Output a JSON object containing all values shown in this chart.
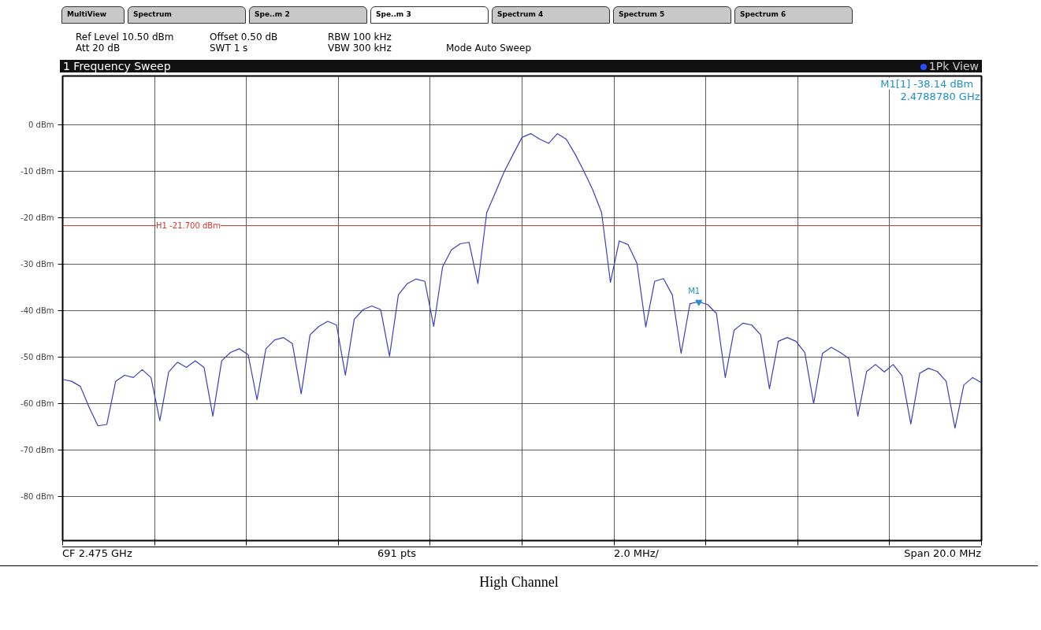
{
  "chart_data": {
    "type": "line",
    "title": "1 Frequency Sweep",
    "categories": [
      null,
      null,
      null,
      null,
      null,
      null,
      null,
      null,
      null,
      null,
      null,
      null,
      null,
      null,
      null,
      null,
      null,
      null,
      null,
      null,
      null,
      null,
      null,
      null,
      null,
      null,
      null,
      null,
      null,
      null,
      null,
      null,
      null,
      null,
      null,
      null,
      null,
      null,
      null,
      null,
      null,
      null,
      null,
      null,
      null,
      null,
      null,
      null,
      null,
      null,
      null,
      null,
      null,
      null,
      null,
      null,
      null,
      null,
      null,
      null,
      null,
      null,
      null,
      null,
      null,
      null,
      null,
      null,
      null,
      null,
      null,
      null,
      null,
      null,
      null,
      null,
      null,
      null,
      null,
      null,
      null,
      null,
      null,
      null,
      null,
      null,
      null,
      null,
      null,
      null,
      null,
      null,
      null,
      null,
      null,
      null,
      null,
      null,
      null,
      null,
      null,
      null,
      null,
      null,
      null
    ],
    "series": [
      {
        "color": "#3b3fc0",
        "values": [
          -54.8,
          -55.2,
          -56.3,
          -60.8,
          -64.8,
          -64.5,
          -55.2,
          -53.9,
          -54.4,
          -52.7,
          -54.4,
          -63.7,
          -53.2,
          -51.1,
          -52.2,
          -50.8,
          -52.2,
          -62.7,
          -50.8,
          -49.0,
          -48.2,
          -49.5,
          -59.2,
          -48.2,
          -46.3,
          -45.8,
          -47.1,
          -57.9,
          -45.2,
          -43.4,
          -42.3,
          -43.1,
          -53.9,
          -41.9,
          -39.8,
          -39.0,
          -39.8,
          -49.8,
          -36.6,
          -34.2,
          -33.2,
          -33.7,
          -43.4,
          -30.6,
          -26.9,
          -25.6,
          -25.3,
          -34.2,
          -18.9,
          -14.5,
          -10.0,
          -6.3,
          -2.7,
          -1.9,
          -3.1,
          -4.0,
          -1.9,
          -3.1,
          -6.3,
          -10.0,
          -14.0,
          -18.9,
          -33.9,
          -25.0,
          -25.8,
          -29.8,
          -43.5,
          -33.7,
          -33.1,
          -36.6,
          -49.2,
          -38.5,
          -38.1,
          -38.7,
          -40.6,
          -54.4,
          -44.2,
          -42.7,
          -43.1,
          -45.2,
          -56.8,
          -46.6,
          -45.8,
          -46.6,
          -49.0,
          -60.0,
          -49.2,
          -47.9,
          -49.0,
          -50.3,
          -62.7,
          -53.1,
          -51.6,
          -53.2,
          -51.6,
          -54.0,
          -64.4,
          -53.5,
          -52.4,
          -53.1,
          -55.2,
          -65.3,
          -56.0,
          -54.4,
          -55.5
        ]
      }
    ],
    "ylim": [
      -89.5,
      10.5
    ],
    "yticks": [
      {
        "value": 0,
        "label": "0 dBm"
      },
      {
        "value": -10,
        "label": "-10 dBm"
      },
      {
        "value": -20,
        "label": "-20 dBm"
      },
      {
        "value": -30,
        "label": "-30 dBm"
      },
      {
        "value": -40,
        "label": "-40 dBm"
      },
      {
        "value": -50,
        "label": "-50 dBm"
      },
      {
        "value": -60,
        "label": "-60 dBm"
      },
      {
        "value": -70,
        "label": "-70 dBm"
      },
      {
        "value": -80,
        "label": "-80 dBm"
      }
    ],
    "tick_labels": "y",
    "grid": true,
    "marker": "none",
    "line_style": "solid",
    "ref_lines": [
      {
        "axis": "y",
        "value": -21.7,
        "label": "H1 -21.700 dBm",
        "color": "#d9362b"
      }
    ],
    "annotations": [
      "MultiView",
      "Spectrum",
      "Spe..m 2",
      "Spe..m 3",
      "Spectrum 4",
      "Spectrum 5",
      "Spectrum 6",
      "Ref Level 10.50 dBm",
      "Offset 0.50 dB",
      "RBW 100 kHz",
      "Att 20 dB",
      "SWT 1 s",
      "VBW 300 kHz",
      "Mode Auto Sweep",
      "1Pk View",
      "M1[1]   -38.14 dBm",
      "2.4788780 GHz",
      {
        "text": "M1",
        "y": -38.14
      },
      "CF 2.475 GHz",
      "691 pts",
      "2.0 MHz/",
      "Span 20.0 MHz",
      "High Channel"
    ]
  }
}
